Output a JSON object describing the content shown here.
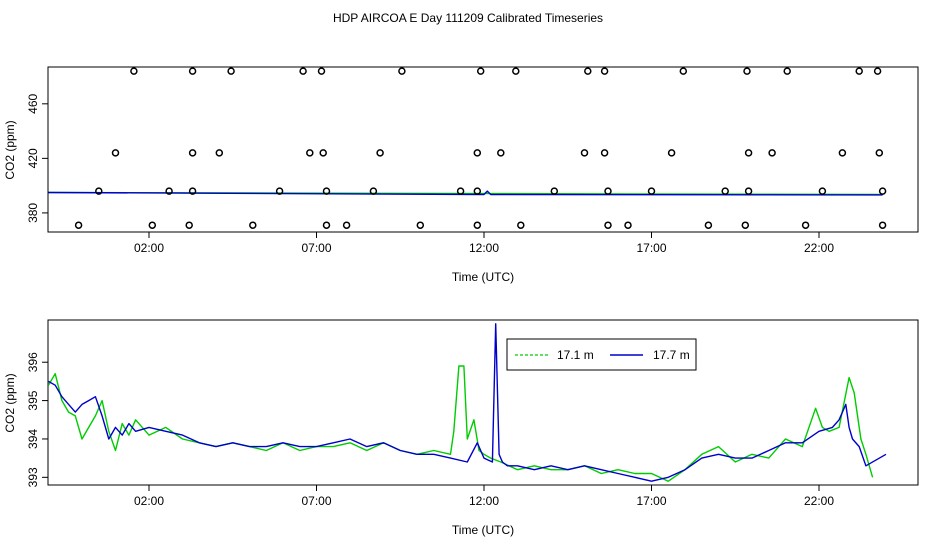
{
  "title": "HDP AIRCOA E  Day 111209  Calibrated Timeseries",
  "chart_data": [
    {
      "type": "scatter",
      "xlabel": "Time (UTC)",
      "ylabel": "CO2 (ppm)",
      "xlim": [
        0,
        24
      ],
      "ylim": [
        366,
        487
      ],
      "grid": false,
      "x_ticks": [
        {
          "value": 2,
          "label": "02:00"
        },
        {
          "value": 7,
          "label": "07:00"
        },
        {
          "value": 12,
          "label": "12:00"
        },
        {
          "value": 17,
          "label": "17:00"
        },
        {
          "value": 22,
          "label": "22:00"
        }
      ],
      "y_ticks": [
        {
          "value": 380,
          "label": "380"
        },
        {
          "value": 420,
          "label": "420"
        },
        {
          "value": 460,
          "label": "460"
        }
      ],
      "points": [
        {
          "x": 1.55,
          "y": 484
        },
        {
          "x": 3.3,
          "y": 484
        },
        {
          "x": 4.45,
          "y": 484
        },
        {
          "x": 6.6,
          "y": 484
        },
        {
          "x": 7.15,
          "y": 484
        },
        {
          "x": 9.55,
          "y": 484
        },
        {
          "x": 11.9,
          "y": 484
        },
        {
          "x": 12.95,
          "y": 484
        },
        {
          "x": 15.1,
          "y": 484
        },
        {
          "x": 15.6,
          "y": 484
        },
        {
          "x": 17.95,
          "y": 484
        },
        {
          "x": 19.85,
          "y": 484
        },
        {
          "x": 21.05,
          "y": 484
        },
        {
          "x": 23.2,
          "y": 484
        },
        {
          "x": 23.75,
          "y": 484
        },
        {
          "x": 1.0,
          "y": 424
        },
        {
          "x": 3.3,
          "y": 424
        },
        {
          "x": 4.1,
          "y": 424
        },
        {
          "x": 6.8,
          "y": 424
        },
        {
          "x": 7.2,
          "y": 424
        },
        {
          "x": 8.9,
          "y": 424
        },
        {
          "x": 11.8,
          "y": 424
        },
        {
          "x": 12.5,
          "y": 424
        },
        {
          "x": 15.0,
          "y": 424
        },
        {
          "x": 15.6,
          "y": 424
        },
        {
          "x": 17.6,
          "y": 424
        },
        {
          "x": 19.9,
          "y": 424
        },
        {
          "x": 20.6,
          "y": 424
        },
        {
          "x": 22.7,
          "y": 424
        },
        {
          "x": 23.8,
          "y": 424
        },
        {
          "x": 0.5,
          "y": 396
        },
        {
          "x": 2.6,
          "y": 396
        },
        {
          "x": 3.3,
          "y": 396
        },
        {
          "x": 5.9,
          "y": 396
        },
        {
          "x": 7.3,
          "y": 396
        },
        {
          "x": 8.7,
          "y": 396
        },
        {
          "x": 11.3,
          "y": 396
        },
        {
          "x": 11.8,
          "y": 396
        },
        {
          "x": 14.1,
          "y": 396
        },
        {
          "x": 15.7,
          "y": 396
        },
        {
          "x": 17.0,
          "y": 396
        },
        {
          "x": 19.2,
          "y": 396
        },
        {
          "x": 19.9,
          "y": 396
        },
        {
          "x": 22.1,
          "y": 396
        },
        {
          "x": 23.9,
          "y": 396
        },
        {
          "x": -0.1,
          "y": 371
        },
        {
          "x": 2.1,
          "y": 371
        },
        {
          "x": 3.2,
          "y": 371
        },
        {
          "x": 5.1,
          "y": 371
        },
        {
          "x": 7.3,
          "y": 371
        },
        {
          "x": 7.9,
          "y": 371
        },
        {
          "x": 10.1,
          "y": 371
        },
        {
          "x": 11.8,
          "y": 371
        },
        {
          "x": 13.1,
          "y": 371
        },
        {
          "x": 15.7,
          "y": 371
        },
        {
          "x": 16.3,
          "y": 371
        },
        {
          "x": 18.7,
          "y": 371
        },
        {
          "x": 19.8,
          "y": 371
        },
        {
          "x": 21.6,
          "y": 371
        },
        {
          "x": 23.9,
          "y": 371
        }
      ],
      "series": [
        {
          "color": "#00cc00",
          "x": [
            -1,
            23.9
          ],
          "y": [
            395,
            393.5
          ]
        },
        {
          "color": "#0000cc",
          "x": [
            -1,
            12.0,
            12.1,
            12.2,
            23.9
          ],
          "y": [
            395,
            393.5,
            396,
            393.5,
            393.2
          ]
        }
      ]
    },
    {
      "type": "line",
      "xlabel": "Time (UTC)",
      "ylabel": "CO2 (ppm)",
      "xlim": [
        0,
        24
      ],
      "ylim": [
        392.8,
        397.1
      ],
      "grid": false,
      "legend": "top-center",
      "x_ticks": [
        {
          "value": 2,
          "label": "02:00"
        },
        {
          "value": 7,
          "label": "07:00"
        },
        {
          "value": 12,
          "label": "12:00"
        },
        {
          "value": 17,
          "label": "17:00"
        },
        {
          "value": 22,
          "label": "22:00"
        }
      ],
      "y_ticks": [
        {
          "value": 393,
          "label": "393"
        },
        {
          "value": 394,
          "label": "394"
        },
        {
          "value": 395,
          "label": "395"
        },
        {
          "value": 396,
          "label": "396"
        }
      ],
      "series": [
        {
          "name": "17.1 m",
          "color": "#00cc00",
          "x": [
            -1.0,
            -0.8,
            -0.6,
            -0.4,
            -0.2,
            0.0,
            0.2,
            0.4,
            0.6,
            0.8,
            1.0,
            1.2,
            1.4,
            1.6,
            2.0,
            2.5,
            3.0,
            3.5,
            4.0,
            4.5,
            5.0,
            5.5,
            6.0,
            6.5,
            7.0,
            7.5,
            8.0,
            8.5,
            9.0,
            9.5,
            10.0,
            10.5,
            11.0,
            11.1,
            11.25,
            11.4,
            11.5,
            11.7,
            11.85,
            12.0,
            12.2,
            12.5,
            13.0,
            13.5,
            14.0,
            14.5,
            15.0,
            15.5,
            16.0,
            16.5,
            17.0,
            17.5,
            18.0,
            18.5,
            19.0,
            19.5,
            20.0,
            20.5,
            21.0,
            21.5,
            21.9,
            22.1,
            22.3,
            22.6,
            22.9,
            23.05,
            23.25,
            23.4,
            23.6
          ],
          "y": [
            395.4,
            395.7,
            395.0,
            394.7,
            394.6,
            394.0,
            394.3,
            394.6,
            395.0,
            394.2,
            393.7,
            394.4,
            394.1,
            394.5,
            394.1,
            394.3,
            394.0,
            393.9,
            393.8,
            393.9,
            393.8,
            393.7,
            393.9,
            393.7,
            393.8,
            393.8,
            393.9,
            393.7,
            393.9,
            393.7,
            393.6,
            393.7,
            393.6,
            394.2,
            395.9,
            395.9,
            394.0,
            394.5,
            393.7,
            393.6,
            393.5,
            393.4,
            393.2,
            393.3,
            393.2,
            393.2,
            393.3,
            393.1,
            393.2,
            393.1,
            393.1,
            392.9,
            393.2,
            393.6,
            393.8,
            393.4,
            393.6,
            393.5,
            394.0,
            393.8,
            394.8,
            394.3,
            394.2,
            394.3,
            395.6,
            395.2,
            394.0,
            393.6,
            393.0
          ]
        },
        {
          "name": "17.7 m",
          "color": "#0000cc",
          "x": [
            -1.0,
            -0.8,
            -0.6,
            -0.4,
            -0.2,
            0.0,
            0.2,
            0.4,
            0.6,
            0.8,
            1.0,
            1.2,
            1.4,
            1.6,
            2.0,
            2.5,
            3.0,
            3.5,
            4.0,
            4.5,
            5.0,
            5.5,
            6.0,
            6.5,
            7.0,
            7.5,
            8.0,
            8.5,
            9.0,
            9.5,
            10.0,
            10.5,
            11.0,
            11.5,
            11.8,
            12.0,
            12.25,
            12.35,
            12.45,
            12.55,
            12.7,
            13.0,
            13.5,
            14.0,
            14.5,
            15.0,
            15.5,
            16.0,
            16.5,
            17.0,
            17.5,
            18.0,
            18.5,
            19.0,
            19.5,
            20.0,
            20.5,
            21.0,
            21.5,
            22.0,
            22.4,
            22.6,
            22.8,
            22.9,
            23.0,
            23.2,
            23.4,
            24.0
          ],
          "y": [
            395.5,
            395.4,
            395.1,
            394.9,
            394.7,
            394.9,
            395.0,
            395.1,
            394.6,
            394.0,
            394.3,
            394.1,
            394.4,
            394.2,
            394.3,
            394.2,
            394.1,
            393.9,
            393.8,
            393.9,
            393.8,
            393.8,
            393.9,
            393.8,
            393.8,
            393.9,
            394.0,
            393.8,
            393.9,
            393.7,
            393.6,
            393.6,
            393.5,
            393.4,
            393.9,
            393.5,
            393.4,
            397.0,
            393.6,
            393.4,
            393.3,
            393.3,
            393.2,
            393.3,
            393.2,
            393.3,
            393.2,
            393.1,
            393.0,
            392.9,
            393.0,
            393.2,
            393.5,
            393.6,
            393.5,
            393.5,
            393.7,
            393.9,
            393.9,
            394.2,
            394.3,
            394.5,
            394.9,
            394.3,
            394.0,
            393.8,
            393.3,
            393.6
          ]
        }
      ]
    }
  ]
}
